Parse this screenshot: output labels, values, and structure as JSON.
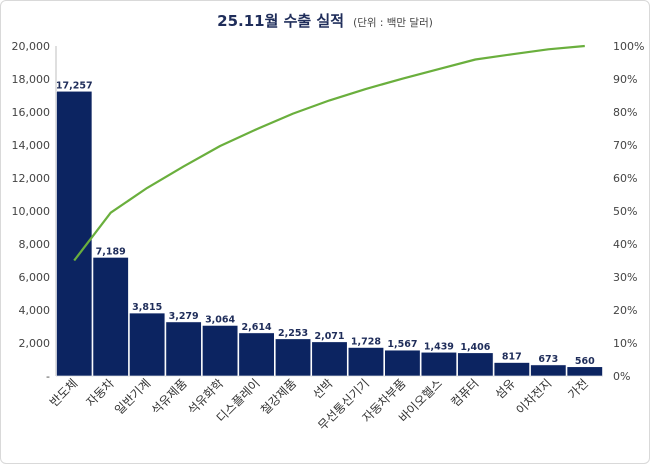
{
  "chart_data": {
    "type": "bar",
    "title": "25.11월 수출 실적",
    "subtitle": "(단위 : 백만 달러)",
    "categories": [
      "반도체",
      "자동차",
      "일반기계",
      "석유제품",
      "석유화학",
      "디스플레이",
      "철강제품",
      "선박",
      "무선통신기기",
      "자동차부품",
      "바이오헬스",
      "컴퓨터",
      "섬유",
      "이차전지",
      "가전"
    ],
    "series": [
      {
        "type": "bar",
        "values": [
          17257,
          7189,
          3815,
          3279,
          3064,
          2614,
          2253,
          2071,
          1728,
          1567,
          1439,
          1406,
          817,
          673,
          560
        ],
        "color": "#0c2461"
      },
      {
        "type": "line",
        "axis": "right",
        "values": [
          35,
          49.5,
          57,
          63.5,
          69.7,
          74.8,
          79.5,
          83.5,
          87,
          90.1,
          93,
          95.9,
          97.5,
          99,
          100
        ],
        "color": "#6aaf3d"
      }
    ],
    "data_labels": [
      "17,257",
      "7,189",
      "3,815",
      "3,279",
      "3,064",
      "2,614",
      "2,253",
      "2,071",
      "1,728",
      "1,567",
      "1,439",
      "1,406",
      "817",
      "673",
      "560"
    ],
    "y_left": {
      "min": 0,
      "max": 20000,
      "ticks": [
        "-",
        "2,000",
        "4,000",
        "6,000",
        "8,000",
        "10,000",
        "12,000",
        "14,000",
        "16,000",
        "18,000",
        "20,000"
      ]
    },
    "y_right": {
      "min": 0,
      "max": 100,
      "ticks": [
        "0%",
        "10%",
        "20%",
        "30%",
        "40%",
        "50%",
        "60%",
        "70%",
        "80%",
        "90%",
        "100%"
      ]
    },
    "grid": false,
    "legend": "none"
  }
}
